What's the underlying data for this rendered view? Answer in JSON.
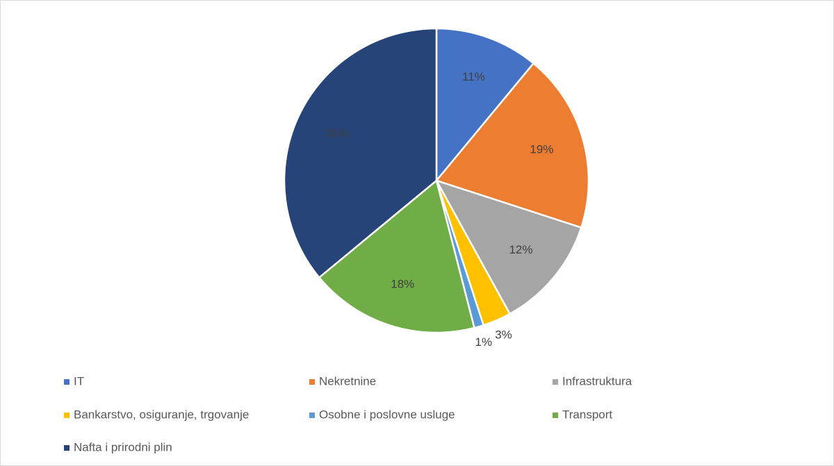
{
  "chart_data": {
    "type": "pie",
    "categories": [
      "IT",
      "Nekretnine",
      "Infrastruktura",
      "Bankarstvo, osiguranje, trgovanje",
      "Osobne i poslovne usluge",
      "Transport",
      "Nafta i prirodni plin"
    ],
    "values": [
      11,
      19,
      12,
      3,
      1,
      18,
      36
    ],
    "value_labels": [
      "11%",
      "19%",
      "12%",
      "3%",
      "1%",
      "18%",
      "36%"
    ],
    "colors": [
      "#4472c4",
      "#ed7d31",
      "#a5a5a5",
      "#ffc000",
      "#5b9bd5",
      "#70ad47",
      "#264478"
    ],
    "legend": "bottom"
  }
}
